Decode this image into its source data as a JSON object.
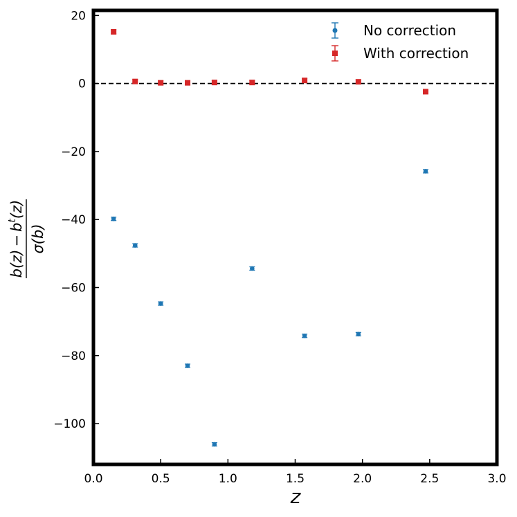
{
  "chart_data": {
    "type": "scatter",
    "xlabel": "z",
    "ylabel_parts": {
      "numerator_b": "b",
      "numerator_z1": "(z)",
      "numerator_minus": "−",
      "numerator_bt": "b",
      "numerator_sup": "t",
      "numerator_z2": "(z)",
      "denominator": "σ(b)"
    },
    "xlim": [
      0.0,
      3.0
    ],
    "ylim": [
      -112,
      21.5
    ],
    "xticks": [
      0.0,
      0.5,
      1.0,
      1.5,
      2.0,
      2.5,
      3.0
    ],
    "xtick_labels": [
      "0.0",
      "0.5",
      "1.0",
      "1.5",
      "2.0",
      "2.5",
      "3.0"
    ],
    "yticks": [
      -100,
      -80,
      -60,
      -40,
      -20,
      0,
      20
    ],
    "ytick_labels": [
      "−100",
      "−80",
      "−60",
      "−40",
      "−20",
      "0",
      "20"
    ],
    "reference_line": {
      "y": 0,
      "style": "dashed",
      "color": "#000000"
    },
    "legend_position": "top-right",
    "series": [
      {
        "name": "No correction",
        "color": "#1f77b4",
        "marker": "circle",
        "x": [
          0.15,
          0.31,
          0.5,
          0.7,
          0.9,
          1.18,
          1.57,
          1.97,
          2.47
        ],
        "y": [
          -39.8,
          -47.6,
          -64.7,
          -83.0,
          -106.1,
          -54.4,
          -74.2,
          -73.7,
          -25.8
        ],
        "yerr": [
          0.5,
          0.5,
          0.5,
          0.5,
          0.5,
          0.5,
          0.5,
          0.5,
          0.5
        ]
      },
      {
        "name": "With correction",
        "color": "#d62728",
        "marker": "square",
        "x": [
          0.15,
          0.31,
          0.5,
          0.7,
          0.9,
          1.18,
          1.57,
          1.97,
          2.47
        ],
        "y": [
          15.2,
          0.6,
          0.2,
          0.2,
          0.3,
          0.3,
          0.9,
          0.5,
          -2.4
        ],
        "yerr": [
          0.6,
          0.6,
          0.6,
          0.6,
          0.6,
          0.6,
          0.6,
          0.6,
          0.6
        ]
      }
    ]
  }
}
